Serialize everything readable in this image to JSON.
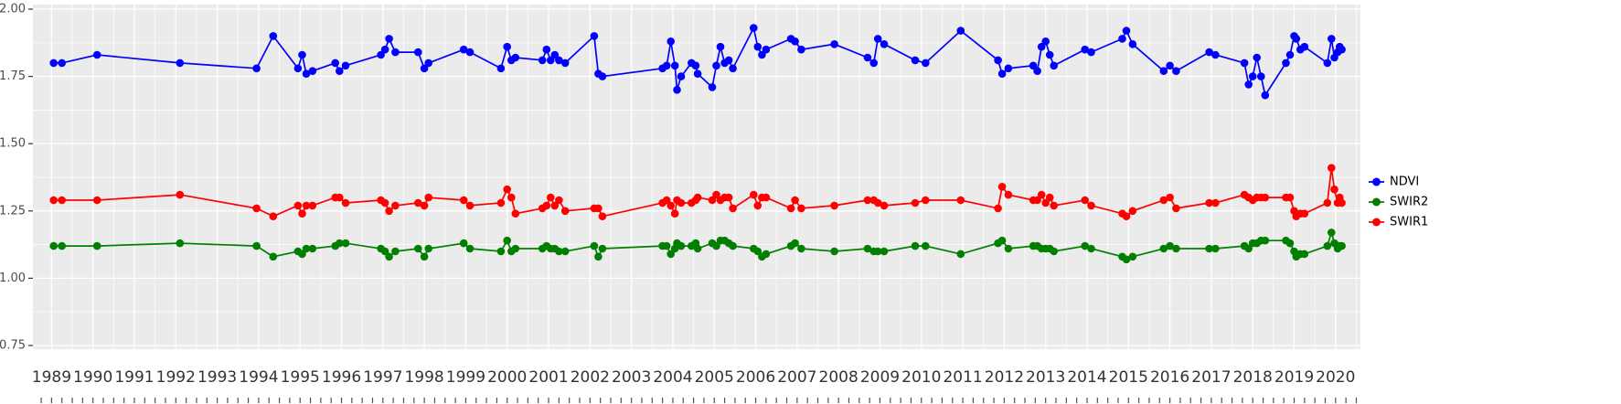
{
  "chart_data": {
    "type": "line",
    "title": "",
    "xlabel": "",
    "ylabel": "",
    "grid": true,
    "panel_bg": "#EBEBEB",
    "grid_color": "#FFFFFF",
    "axis_text_color": "#4D4D4D",
    "legend_position": "right",
    "x_range": [
      1988.55,
      2020.6
    ],
    "y_range": [
      0.75,
      2.0
    ],
    "y_ticks": [
      2.0,
      1.75,
      1.5,
      1.25,
      1.0,
      0.75
    ],
    "y_tick_labels": [
      "2.00",
      "1.75",
      "1.50",
      "1.25",
      "1.00",
      "0.75"
    ],
    "x_tick_years": [
      1989,
      1990,
      1991,
      1992,
      1993,
      1994,
      1995,
      1996,
      1997,
      1998,
      1999,
      2000,
      2001,
      2002,
      2003,
      2004,
      2005,
      2006,
      2007,
      2008,
      2009,
      2010,
      2011,
      2012,
      2013,
      2014,
      2015,
      2016,
      2017,
      2018,
      2019,
      2020
    ],
    "x_tick_labels": [
      "1989",
      "1990",
      "1991",
      "1992",
      "1993",
      "1994",
      "1995",
      "1996",
      "1997",
      "1998",
      "1999",
      "2000",
      "2001",
      "2002",
      "2003",
      "2004",
      "2005",
      "2006",
      "2007",
      "2008",
      "2009",
      "2010",
      "2011",
      "2012",
      "2013",
      "2014",
      "2015",
      "2016",
      "2017",
      "2018",
      "2019",
      "2020"
    ],
    "x": [
      1989.05,
      1989.25,
      1990.1,
      1992.1,
      1993.95,
      1994.35,
      1994.95,
      1995.05,
      1995.15,
      1995.3,
      1995.85,
      1995.95,
      1996.1,
      1996.95,
      1997.05,
      1997.15,
      1997.3,
      1997.85,
      1998.0,
      1998.1,
      1998.95,
      1999.1,
      1999.85,
      2000.0,
      2000.1,
      2000.2,
      2000.85,
      2000.95,
      2001.05,
      2001.15,
      2001.25,
      2001.4,
      2002.1,
      2002.2,
      2002.3,
      2003.75,
      2003.85,
      2003.95,
      2004.05,
      2004.1,
      2004.2,
      2004.45,
      2004.55,
      2004.6,
      2004.95,
      2005.05,
      2005.15,
      2005.25,
      2005.35,
      2005.45,
      2005.95,
      2006.05,
      2006.15,
      2006.25,
      2006.85,
      2006.95,
      2007.1,
      2007.9,
      2008.7,
      2008.85,
      2008.95,
      2009.1,
      2009.85,
      2010.1,
      2010.95,
      2011.85,
      2011.95,
      2012.1,
      2012.7,
      2012.8,
      2012.9,
      2013.0,
      2013.1,
      2013.2,
      2013.95,
      2014.1,
      2014.85,
      2014.95,
      2015.1,
      2015.85,
      2016.0,
      2016.15,
      2016.95,
      2017.1,
      2017.8,
      2017.9,
      2018.0,
      2018.1,
      2018.2,
      2018.3,
      2018.8,
      2018.9,
      2019.0,
      2019.05,
      2019.15,
      2019.25,
      2019.8,
      2019.9,
      2019.97,
      2020.05,
      2020.1,
      2020.15
    ],
    "series": [
      {
        "name": "NDVI",
        "color": "#0000FF",
        "values": [
          1.8,
          1.8,
          1.83,
          1.8,
          1.78,
          1.9,
          1.78,
          1.83,
          1.76,
          1.77,
          1.8,
          1.77,
          1.79,
          1.83,
          1.85,
          1.89,
          1.84,
          1.84,
          1.78,
          1.8,
          1.85,
          1.84,
          1.78,
          1.86,
          1.81,
          1.82,
          1.81,
          1.85,
          1.81,
          1.83,
          1.81,
          1.8,
          1.9,
          1.76,
          1.75,
          1.78,
          1.79,
          1.88,
          1.79,
          1.7,
          1.75,
          1.8,
          1.79,
          1.76,
          1.71,
          1.79,
          1.86,
          1.8,
          1.81,
          1.78,
          1.93,
          1.86,
          1.83,
          1.85,
          1.89,
          1.88,
          1.85,
          1.87,
          1.82,
          1.8,
          1.89,
          1.87,
          1.81,
          1.8,
          1.92,
          1.81,
          1.76,
          1.78,
          1.79,
          1.77,
          1.86,
          1.88,
          1.83,
          1.79,
          1.85,
          1.84,
          1.89,
          1.92,
          1.87,
          1.77,
          1.79,
          1.77,
          1.84,
          1.83,
          1.8,
          1.72,
          1.75,
          1.82,
          1.75,
          1.68,
          1.8,
          1.83,
          1.9,
          1.89,
          1.85,
          1.86,
          1.8,
          1.89,
          1.82,
          1.84,
          1.86,
          1.85
        ]
      },
      {
        "name": "SWIR2",
        "color": "#007F00",
        "values": [
          1.12,
          1.12,
          1.12,
          1.13,
          1.12,
          1.08,
          1.1,
          1.09,
          1.11,
          1.11,
          1.12,
          1.13,
          1.13,
          1.11,
          1.1,
          1.08,
          1.1,
          1.11,
          1.08,
          1.11,
          1.13,
          1.11,
          1.1,
          1.14,
          1.1,
          1.11,
          1.11,
          1.12,
          1.11,
          1.11,
          1.1,
          1.1,
          1.12,
          1.08,
          1.11,
          1.12,
          1.12,
          1.09,
          1.11,
          1.13,
          1.12,
          1.12,
          1.13,
          1.11,
          1.13,
          1.12,
          1.14,
          1.14,
          1.13,
          1.12,
          1.11,
          1.1,
          1.08,
          1.09,
          1.12,
          1.13,
          1.11,
          1.1,
          1.11,
          1.1,
          1.1,
          1.1,
          1.12,
          1.12,
          1.09,
          1.13,
          1.14,
          1.11,
          1.12,
          1.12,
          1.11,
          1.11,
          1.11,
          1.1,
          1.12,
          1.11,
          1.08,
          1.07,
          1.08,
          1.11,
          1.12,
          1.11,
          1.11,
          1.11,
          1.12,
          1.11,
          1.13,
          1.13,
          1.14,
          1.14,
          1.14,
          1.13,
          1.1,
          1.08,
          1.09,
          1.09,
          1.12,
          1.17,
          1.13,
          1.11,
          1.12,
          1.12
        ]
      },
      {
        "name": "SWIR1",
        "color": "#FF0000",
        "values": [
          1.29,
          1.29,
          1.29,
          1.31,
          1.26,
          1.23,
          1.27,
          1.24,
          1.27,
          1.27,
          1.3,
          1.3,
          1.28,
          1.29,
          1.28,
          1.25,
          1.27,
          1.28,
          1.27,
          1.3,
          1.29,
          1.27,
          1.28,
          1.33,
          1.3,
          1.24,
          1.26,
          1.27,
          1.3,
          1.27,
          1.29,
          1.25,
          1.26,
          1.26,
          1.23,
          1.28,
          1.29,
          1.27,
          1.24,
          1.29,
          1.28,
          1.28,
          1.29,
          1.3,
          1.29,
          1.31,
          1.29,
          1.3,
          1.3,
          1.26,
          1.31,
          1.27,
          1.3,
          1.3,
          1.26,
          1.29,
          1.26,
          1.27,
          1.29,
          1.29,
          1.28,
          1.27,
          1.28,
          1.29,
          1.29,
          1.26,
          1.34,
          1.31,
          1.29,
          1.29,
          1.31,
          1.28,
          1.3,
          1.27,
          1.29,
          1.27,
          1.24,
          1.23,
          1.25,
          1.29,
          1.3,
          1.26,
          1.28,
          1.28,
          1.31,
          1.3,
          1.29,
          1.3,
          1.3,
          1.3,
          1.3,
          1.3,
          1.25,
          1.23,
          1.24,
          1.24,
          1.28,
          1.41,
          1.33,
          1.28,
          1.3,
          1.28
        ]
      }
    ],
    "legend_entries": [
      "NDVI",
      "SWIR2",
      "SWIR1"
    ]
  }
}
